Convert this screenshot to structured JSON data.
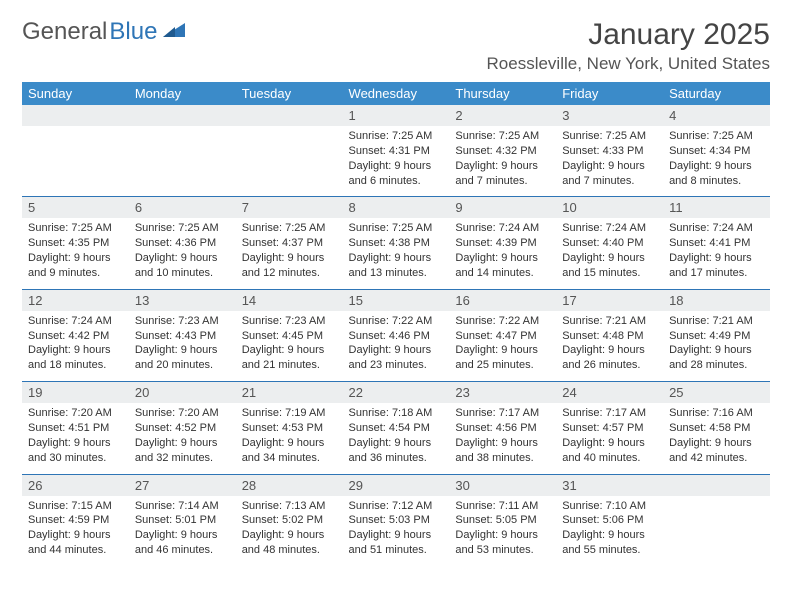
{
  "logo": {
    "text_gray": "General",
    "text_blue": "Blue"
  },
  "title": "January 2025",
  "location": "Roessleville, New York, United States",
  "colors": {
    "header_bg": "#3b8bc9",
    "header_text": "#ffffff",
    "daynum_bg": "#eceeef",
    "row_border": "#2e75b6",
    "body_text": "#333333",
    "logo_gray": "#555555",
    "logo_blue": "#2e75b6",
    "page_bg": "#ffffff"
  },
  "typography": {
    "month_title_pt": 30,
    "location_pt": 17,
    "weekday_pt": 13,
    "daynum_pt": 13,
    "body_pt": 11,
    "font_family": "Arial"
  },
  "calendar": {
    "type": "table",
    "columns": [
      "Sunday",
      "Monday",
      "Tuesday",
      "Wednesday",
      "Thursday",
      "Friday",
      "Saturday"
    ],
    "weeks": [
      [
        null,
        null,
        null,
        {
          "n": "1",
          "sr": "7:25 AM",
          "ss": "4:31 PM",
          "dl": "9 hours and 6 minutes."
        },
        {
          "n": "2",
          "sr": "7:25 AM",
          "ss": "4:32 PM",
          "dl": "9 hours and 7 minutes."
        },
        {
          "n": "3",
          "sr": "7:25 AM",
          "ss": "4:33 PM",
          "dl": "9 hours and 7 minutes."
        },
        {
          "n": "4",
          "sr": "7:25 AM",
          "ss": "4:34 PM",
          "dl": "9 hours and 8 minutes."
        }
      ],
      [
        {
          "n": "5",
          "sr": "7:25 AM",
          "ss": "4:35 PM",
          "dl": "9 hours and 9 minutes."
        },
        {
          "n": "6",
          "sr": "7:25 AM",
          "ss": "4:36 PM",
          "dl": "9 hours and 10 minutes."
        },
        {
          "n": "7",
          "sr": "7:25 AM",
          "ss": "4:37 PM",
          "dl": "9 hours and 12 minutes."
        },
        {
          "n": "8",
          "sr": "7:25 AM",
          "ss": "4:38 PM",
          "dl": "9 hours and 13 minutes."
        },
        {
          "n": "9",
          "sr": "7:24 AM",
          "ss": "4:39 PM",
          "dl": "9 hours and 14 minutes."
        },
        {
          "n": "10",
          "sr": "7:24 AM",
          "ss": "4:40 PM",
          "dl": "9 hours and 15 minutes."
        },
        {
          "n": "11",
          "sr": "7:24 AM",
          "ss": "4:41 PM",
          "dl": "9 hours and 17 minutes."
        }
      ],
      [
        {
          "n": "12",
          "sr": "7:24 AM",
          "ss": "4:42 PM",
          "dl": "9 hours and 18 minutes."
        },
        {
          "n": "13",
          "sr": "7:23 AM",
          "ss": "4:43 PM",
          "dl": "9 hours and 20 minutes."
        },
        {
          "n": "14",
          "sr": "7:23 AM",
          "ss": "4:45 PM",
          "dl": "9 hours and 21 minutes."
        },
        {
          "n": "15",
          "sr": "7:22 AM",
          "ss": "4:46 PM",
          "dl": "9 hours and 23 minutes."
        },
        {
          "n": "16",
          "sr": "7:22 AM",
          "ss": "4:47 PM",
          "dl": "9 hours and 25 minutes."
        },
        {
          "n": "17",
          "sr": "7:21 AM",
          "ss": "4:48 PM",
          "dl": "9 hours and 26 minutes."
        },
        {
          "n": "18",
          "sr": "7:21 AM",
          "ss": "4:49 PM",
          "dl": "9 hours and 28 minutes."
        }
      ],
      [
        {
          "n": "19",
          "sr": "7:20 AM",
          "ss": "4:51 PM",
          "dl": "9 hours and 30 minutes."
        },
        {
          "n": "20",
          "sr": "7:20 AM",
          "ss": "4:52 PM",
          "dl": "9 hours and 32 minutes."
        },
        {
          "n": "21",
          "sr": "7:19 AM",
          "ss": "4:53 PM",
          "dl": "9 hours and 34 minutes."
        },
        {
          "n": "22",
          "sr": "7:18 AM",
          "ss": "4:54 PM",
          "dl": "9 hours and 36 minutes."
        },
        {
          "n": "23",
          "sr": "7:17 AM",
          "ss": "4:56 PM",
          "dl": "9 hours and 38 minutes."
        },
        {
          "n": "24",
          "sr": "7:17 AM",
          "ss": "4:57 PM",
          "dl": "9 hours and 40 minutes."
        },
        {
          "n": "25",
          "sr": "7:16 AM",
          "ss": "4:58 PM",
          "dl": "9 hours and 42 minutes."
        }
      ],
      [
        {
          "n": "26",
          "sr": "7:15 AM",
          "ss": "4:59 PM",
          "dl": "9 hours and 44 minutes."
        },
        {
          "n": "27",
          "sr": "7:14 AM",
          "ss": "5:01 PM",
          "dl": "9 hours and 46 minutes."
        },
        {
          "n": "28",
          "sr": "7:13 AM",
          "ss": "5:02 PM",
          "dl": "9 hours and 48 minutes."
        },
        {
          "n": "29",
          "sr": "7:12 AM",
          "ss": "5:03 PM",
          "dl": "9 hours and 51 minutes."
        },
        {
          "n": "30",
          "sr": "7:11 AM",
          "ss": "5:05 PM",
          "dl": "9 hours and 53 minutes."
        },
        {
          "n": "31",
          "sr": "7:10 AM",
          "ss": "5:06 PM",
          "dl": "9 hours and 55 minutes."
        },
        null
      ]
    ],
    "labels": {
      "sunrise": "Sunrise:",
      "sunset": "Sunset:",
      "daylight": "Daylight:"
    }
  }
}
